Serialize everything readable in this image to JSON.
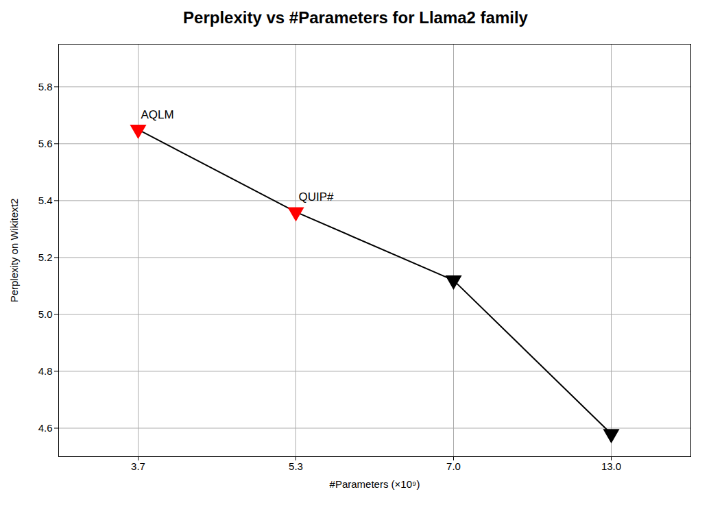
{
  "chart_data": {
    "type": "line",
    "title": "Perplexity vs #Parameters for Llama2 family",
    "xlabel": "#Parameters (×10⁹)",
    "ylabel": "Perplexity on Wikitext2",
    "categories": [
      "3.7",
      "5.3",
      "7.0",
      "13.0"
    ],
    "values": [
      5.65,
      5.36,
      5.12,
      4.58
    ],
    "color": "black",
    "colors": [
      "red",
      "red",
      "black",
      "black"
    ],
    "marker": "triangle-down",
    "ylim": [
      4.5,
      5.95
    ],
    "yticks": [
      4.6,
      4.8,
      {
        "value": 5,
        "label": "5.0"
      },
      5.2,
      5.4,
      5.6,
      5.8
    ],
    "grid": true,
    "annotations": [
      {
        "text": "AQLM",
        "x": "3.7",
        "y": 5.65
      },
      {
        "text": "QUIP#",
        "x": "5.3",
        "y": 5.36
      }
    ]
  }
}
